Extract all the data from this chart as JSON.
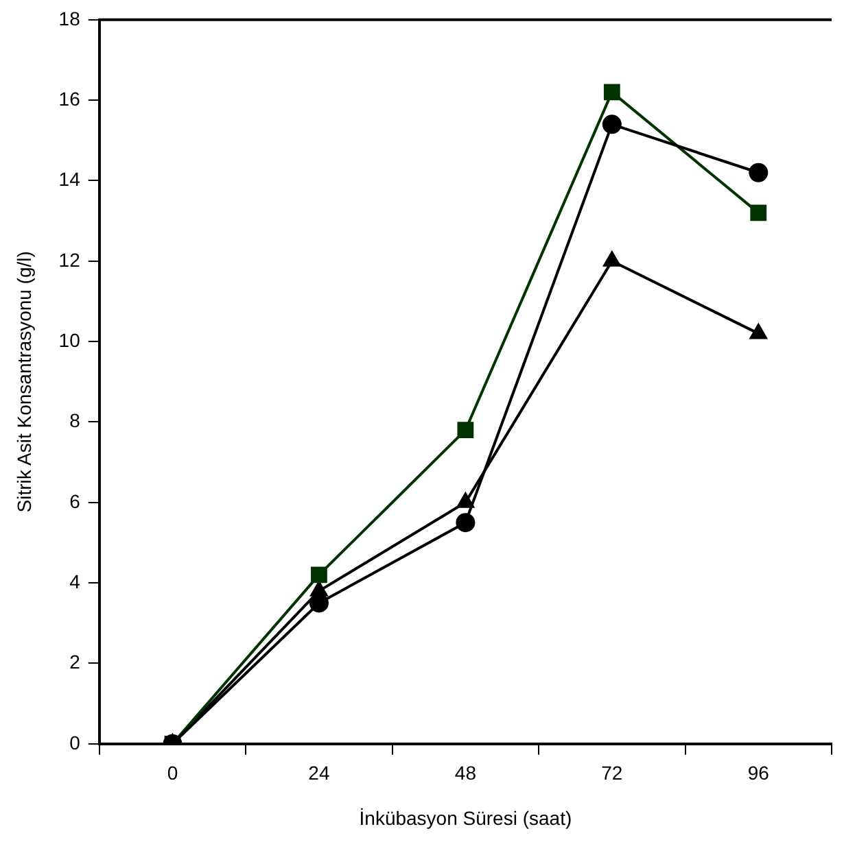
{
  "chart_data": {
    "type": "line",
    "xlabel": "İnkübasyon Süresi (saat)",
    "ylabel": "Sitrik Asit Konsantrasyonu (g/l)",
    "categories": [
      "0",
      "24",
      "48",
      "72",
      "96"
    ],
    "ylim": [
      0,
      18
    ],
    "yticks": [
      0,
      2,
      4,
      6,
      8,
      10,
      12,
      14,
      16,
      18
    ],
    "grid": false,
    "legend": false,
    "line_style": "solid",
    "series": [
      {
        "color": "#000000",
        "marker": "circle",
        "values": [
          0,
          3.5,
          5.5,
          15.4,
          14.2
        ]
      },
      {
        "color": "#003300",
        "marker": "square",
        "values": [
          0,
          4.2,
          7.8,
          16.2,
          13.2
        ]
      },
      {
        "color": "#000000",
        "marker": "triangle",
        "values": [
          0,
          3.8,
          6.0,
          12.0,
          10.2
        ]
      }
    ]
  }
}
